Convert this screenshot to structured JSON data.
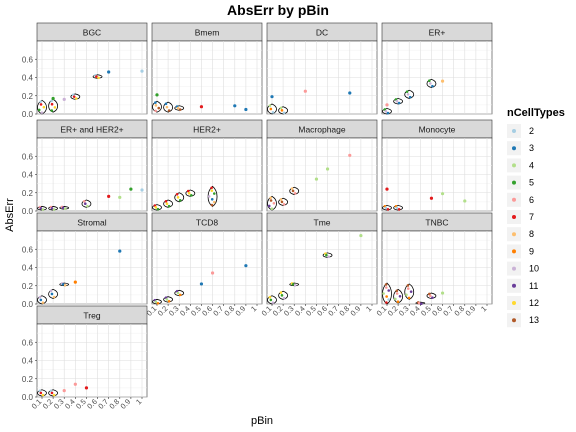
{
  "chart_data": {
    "type": "violin",
    "title": "AbsErr by pBin",
    "xlabel": "pBin",
    "ylabel": "AbsErr",
    "x_ticks": [
      "0.1",
      "0.2",
      "0.3",
      "0.4",
      "0.5",
      "0.6",
      "0.7",
      "0.8",
      "0.9",
      "1"
    ],
    "ylim": [
      0,
      0.8
    ],
    "y_ticks": [
      0.0,
      0.2,
      0.4,
      0.6
    ],
    "y_tick_labels": [
      "0.0",
      "0.2",
      "0.4",
      "0.6"
    ],
    "grid": true,
    "legend": {
      "title": "nCellTypes",
      "placement": "right",
      "items": [
        {
          "label": "2",
          "color": "#A6CEE3"
        },
        {
          "label": "3",
          "color": "#1F78B4"
        },
        {
          "label": "4",
          "color": "#B2DF8A"
        },
        {
          "label": "5",
          "color": "#33A02C"
        },
        {
          "label": "6",
          "color": "#FB9A99"
        },
        {
          "label": "7",
          "color": "#E31A1C"
        },
        {
          "label": "8",
          "color": "#FDBF6F"
        },
        {
          "label": "9",
          "color": "#FF7F00"
        },
        {
          "label": "10",
          "color": "#CAB2D6"
        },
        {
          "label": "11",
          "color": "#6A3D9A"
        },
        {
          "label": "12",
          "color": "#FFD92F"
        },
        {
          "label": "13",
          "color": "#B15928"
        }
      ]
    },
    "panels": [
      {
        "name": "BGC",
        "violins": [
          {
            "x": 0.1,
            "min": 0.0,
            "max": 0.15
          },
          {
            "x": 0.2,
            "min": 0.02,
            "max": 0.16
          },
          {
            "x": 0.4,
            "min": 0.16,
            "max": 0.22
          },
          {
            "x": 0.6,
            "min": 0.39,
            "max": 0.43
          }
        ],
        "points": [
          {
            "x": 0.2,
            "y": 0.17,
            "c": "5"
          },
          {
            "x": 0.3,
            "y": 0.16,
            "c": "10"
          },
          {
            "x": 0.7,
            "y": 0.46,
            "c": "3"
          },
          {
            "x": 1.0,
            "y": 0.47,
            "c": "2"
          }
        ]
      },
      {
        "name": "Bmem",
        "violins": [
          {
            "x": 0.1,
            "min": 0.02,
            "max": 0.14
          },
          {
            "x": 0.2,
            "min": 0.02,
            "max": 0.13
          },
          {
            "x": 0.3,
            "min": 0.04,
            "max": 0.09
          }
        ],
        "points": [
          {
            "x": 0.5,
            "y": 0.08,
            "c": "7"
          },
          {
            "x": 0.8,
            "y": 0.09,
            "c": "3"
          },
          {
            "x": 0.9,
            "y": 0.05,
            "c": "3"
          },
          {
            "x": 0.1,
            "y": 0.21,
            "c": "5"
          }
        ]
      },
      {
        "name": "DC",
        "violins": [
          {
            "x": 0.1,
            "min": 0.0,
            "max": 0.11
          },
          {
            "x": 0.2,
            "min": 0.0,
            "max": 0.08
          }
        ],
        "points": [
          {
            "x": 0.1,
            "y": 0.19,
            "c": "3"
          },
          {
            "x": 0.4,
            "y": 0.25,
            "c": "6"
          },
          {
            "x": 0.8,
            "y": 0.23,
            "c": "3"
          }
        ]
      },
      {
        "name": "ER+",
        "violins": [
          {
            "x": 0.1,
            "min": 0.0,
            "max": 0.06
          },
          {
            "x": 0.2,
            "min": 0.11,
            "max": 0.17
          },
          {
            "x": 0.3,
            "min": 0.17,
            "max": 0.26
          },
          {
            "x": 0.5,
            "min": 0.29,
            "max": 0.38
          }
        ],
        "points": [
          {
            "x": 0.6,
            "y": 0.36,
            "c": "8"
          },
          {
            "x": 0.1,
            "y": 0.1,
            "c": "6"
          }
        ]
      },
      {
        "name": "ER+ and HER2+",
        "violins": [
          {
            "x": 0.1,
            "min": 0.01,
            "max": 0.05
          },
          {
            "x": 0.2,
            "min": 0.01,
            "max": 0.05
          },
          {
            "x": 0.3,
            "min": 0.02,
            "max": 0.05
          },
          {
            "x": 0.5,
            "min": 0.04,
            "max": 0.12
          }
        ],
        "points": [
          {
            "x": 0.7,
            "y": 0.16,
            "c": "7"
          },
          {
            "x": 0.8,
            "y": 0.15,
            "c": "4"
          },
          {
            "x": 0.9,
            "y": 0.24,
            "c": "5"
          },
          {
            "x": 1.0,
            "y": 0.23,
            "c": "2"
          }
        ]
      },
      {
        "name": "HER2+",
        "violins": [
          {
            "x": 0.1,
            "min": 0.01,
            "max": 0.07
          },
          {
            "x": 0.2,
            "min": 0.04,
            "max": 0.12
          },
          {
            "x": 0.3,
            "min": 0.1,
            "max": 0.2
          },
          {
            "x": 0.4,
            "min": 0.16,
            "max": 0.23
          },
          {
            "x": 0.6,
            "min": 0.05,
            "max": 0.27
          }
        ],
        "points": []
      },
      {
        "name": "Macrophage",
        "violins": [
          {
            "x": 0.1,
            "min": 0.01,
            "max": 0.16
          },
          {
            "x": 0.2,
            "min": 0.06,
            "max": 0.14
          },
          {
            "x": 0.3,
            "min": 0.18,
            "max": 0.26
          }
        ],
        "points": [
          {
            "x": 0.5,
            "y": 0.35,
            "c": "4"
          },
          {
            "x": 0.6,
            "y": 0.46,
            "c": "4"
          },
          {
            "x": 0.8,
            "y": 0.61,
            "c": "6"
          }
        ]
      },
      {
        "name": "Monocyte",
        "violins": [
          {
            "x": 0.1,
            "min": 0.01,
            "max": 0.06
          },
          {
            "x": 0.2,
            "min": 0.01,
            "max": 0.06
          }
        ],
        "points": [
          {
            "x": 0.1,
            "y": 0.24,
            "c": "7"
          },
          {
            "x": 0.5,
            "y": 0.14,
            "c": "7"
          },
          {
            "x": 0.6,
            "y": 0.19,
            "c": "4"
          },
          {
            "x": 0.8,
            "y": 0.11,
            "c": "4"
          }
        ]
      },
      {
        "name": "Stromal",
        "violins": [
          {
            "x": 0.1,
            "min": 0.0,
            "max": 0.09
          },
          {
            "x": 0.2,
            "min": 0.06,
            "max": 0.16
          },
          {
            "x": 0.3,
            "min": 0.2,
            "max": 0.23
          }
        ],
        "points": [
          {
            "x": 0.4,
            "y": 0.24,
            "c": "9"
          },
          {
            "x": 0.8,
            "y": 0.58,
            "c": "3"
          }
        ]
      },
      {
        "name": "TCD8",
        "violins": [
          {
            "x": 0.1,
            "min": 0.0,
            "max": 0.05
          },
          {
            "x": 0.2,
            "min": 0.02,
            "max": 0.08
          },
          {
            "x": 0.3,
            "min": 0.09,
            "max": 0.15
          }
        ],
        "points": [
          {
            "x": 0.5,
            "y": 0.22,
            "c": "3"
          },
          {
            "x": 0.6,
            "y": 0.34,
            "c": "6"
          },
          {
            "x": 0.9,
            "y": 0.42,
            "c": "3"
          }
        ]
      },
      {
        "name": "Tme",
        "violins": [
          {
            "x": 0.1,
            "min": 0.0,
            "max": 0.09
          },
          {
            "x": 0.2,
            "min": 0.05,
            "max": 0.14
          },
          {
            "x": 0.3,
            "min": 0.2,
            "max": 0.23
          },
          {
            "x": 0.6,
            "min": 0.51,
            "max": 0.56
          }
        ],
        "points": [
          {
            "x": 0.9,
            "y": 0.75,
            "c": "4"
          }
        ]
      },
      {
        "name": "TNBC",
        "violins": [
          {
            "x": 0.1,
            "min": 0.0,
            "max": 0.23
          },
          {
            "x": 0.2,
            "min": 0.01,
            "max": 0.16
          },
          {
            "x": 0.3,
            "min": 0.05,
            "max": 0.22
          },
          {
            "x": 0.4,
            "min": 0.0,
            "max": 0.02
          },
          {
            "x": 0.5,
            "min": 0.06,
            "max": 0.12
          }
        ],
        "points": [
          {
            "x": 0.6,
            "y": 0.12,
            "c": "4"
          }
        ]
      },
      {
        "name": "Treg",
        "violins": [
          {
            "x": 0.1,
            "min": 0.01,
            "max": 0.08
          },
          {
            "x": 0.2,
            "min": 0.01,
            "max": 0.08
          }
        ],
        "points": [
          {
            "x": 0.3,
            "y": 0.07,
            "c": "6"
          },
          {
            "x": 0.4,
            "y": 0.14,
            "c": "6"
          },
          {
            "x": 0.5,
            "y": 0.1,
            "c": "7"
          }
        ]
      }
    ]
  }
}
